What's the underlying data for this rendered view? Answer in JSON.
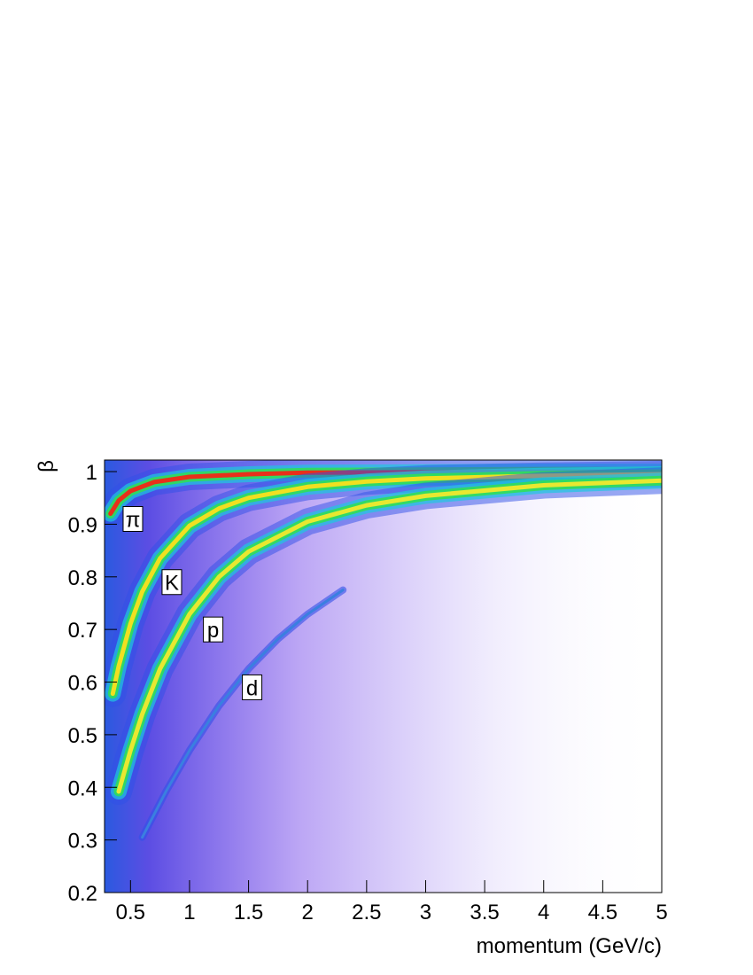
{
  "chart_data": {
    "type": "density",
    "x_label": "momentum (GeV/c)",
    "y_label": "β",
    "xlim": [
      0.28,
      5
    ],
    "ylim": [
      0.2,
      1.022
    ],
    "xticks": [
      0.5,
      1,
      1.5,
      2,
      2.5,
      3,
      3.5,
      4,
      4.5,
      5
    ],
    "yticks": [
      0.2,
      0.3,
      0.4,
      0.5,
      0.6,
      0.7,
      0.8,
      0.9,
      1
    ],
    "series": [
      {
        "name": "π",
        "color": "#e8301a",
        "x": [
          0.33,
          0.4,
          0.5,
          0.7,
          1,
          1.5,
          2,
          3,
          4,
          5
        ],
        "values": [
          0.92,
          0.945,
          0.963,
          0.98,
          0.99,
          0.995,
          0.998,
          0.999,
          1.0,
          1.0
        ]
      },
      {
        "name": "K",
        "color": "#f0e020",
        "x": [
          0.35,
          0.4,
          0.5,
          0.6,
          0.75,
          1,
          1.25,
          1.5,
          2,
          2.5,
          3,
          4,
          5
        ],
        "values": [
          0.578,
          0.63,
          0.711,
          0.772,
          0.835,
          0.897,
          0.93,
          0.95,
          0.971,
          0.981,
          0.987,
          0.992,
          0.995
        ]
      },
      {
        "name": "p",
        "color": "#e8e830",
        "x": [
          0.4,
          0.5,
          0.6,
          0.75,
          1,
          1.25,
          1.5,
          2,
          2.5,
          3,
          4,
          5
        ],
        "values": [
          0.392,
          0.47,
          0.539,
          0.625,
          0.729,
          0.8,
          0.848,
          0.905,
          0.936,
          0.954,
          0.974,
          0.983
        ]
      },
      {
        "name": "d",
        "color": "#3a7fe0",
        "x": [
          0.6,
          0.8,
          1,
          1.25,
          1.5,
          1.75,
          2,
          2.3
        ],
        "values": [
          0.305,
          0.392,
          0.47,
          0.555,
          0.625,
          0.682,
          0.729,
          0.775
        ]
      }
    ],
    "annotations": [
      {
        "text": "π",
        "x": 0.52,
        "y": 0.91
      },
      {
        "text": "K",
        "x": 0.85,
        "y": 0.79
      },
      {
        "text": "p",
        "x": 1.2,
        "y": 0.7
      },
      {
        "text": "d",
        "x": 1.53,
        "y": 0.59
      }
    ]
  }
}
